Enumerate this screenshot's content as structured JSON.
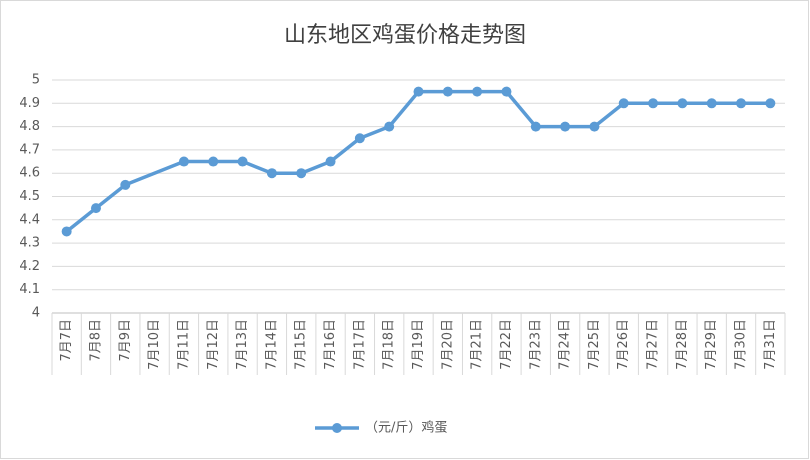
{
  "chart_data": {
    "type": "line",
    "title": "山东地区鸡蛋价格走势图",
    "categories": [
      "7月7日",
      "7月8日",
      "7月9日",
      "7月10日",
      "7月11日",
      "7月12日",
      "7月13日",
      "7月14日",
      "7月15日",
      "7月16日",
      "7月17日",
      "7月18日",
      "7月19日",
      "7月20日",
      "7月21日",
      "7月22日",
      "7月23日",
      "7月24日",
      "7月25日",
      "7月26日",
      "7月27日",
      "7月28日",
      "7月29日",
      "7月30日",
      "7月31日"
    ],
    "series": [
      {
        "name": "（元/斤）鸡蛋",
        "color": "#5b9bd5",
        "values": [
          4.35,
          4.45,
          4.55,
          null,
          4.65,
          4.65,
          4.65,
          4.6,
          4.6,
          4.65,
          4.75,
          4.8,
          4.95,
          4.95,
          4.95,
          4.95,
          4.8,
          4.8,
          4.8,
          4.9,
          4.9,
          4.9,
          4.9,
          4.9,
          4.9
        ]
      }
    ],
    "ylim": [
      4,
      5
    ],
    "yticks": [
      4,
      4.1,
      4.2,
      4.3,
      4.4,
      4.5,
      4.6,
      4.7,
      4.8,
      4.9,
      5
    ],
    "grid": true,
    "span_gaps": true,
    "legend": "bottom"
  }
}
